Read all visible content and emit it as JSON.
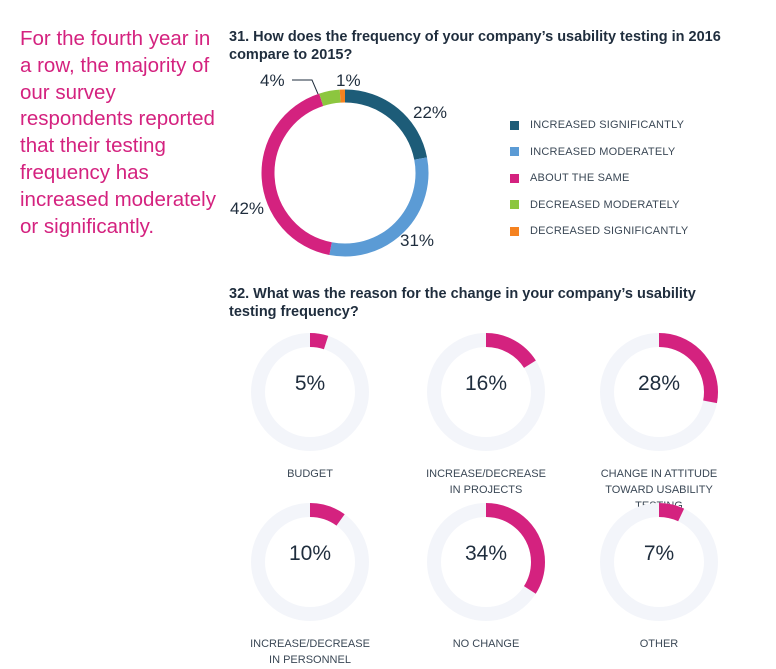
{
  "intro_text": "For the fourth year in a row, the majority of our survey respondents reported that their testing frequency has increased moderately or significantly.",
  "q31": {
    "title": "31. How does the frequency of your company’s usability testing in 2016 compare to 2015?"
  },
  "q32": {
    "title": "32. What was the reason for the change in your company’s usability testing frequency?"
  },
  "colors": {
    "increased_significantly": "#1d5c78",
    "increased_moderately": "#5b9bd5",
    "about_the_same": "#d4227f",
    "decreased_moderately": "#8cc63f",
    "decreased_significantly": "#f58220",
    "donut_track": "#f3f5fa",
    "donut_fill": "#d4227f"
  },
  "chart_data": [
    {
      "type": "pie",
      "style": "donut",
      "categories": [
        "INCREASED SIGNIFICANTLY",
        "INCREASED MODERATELY",
        "ABOUT THE SAME",
        "DECREASED MODERATELY",
        "DECREASED SIGNIFICANTLY"
      ],
      "values": [
        22,
        31,
        42,
        4,
        1
      ],
      "value_labels": [
        "22%",
        "31%",
        "42%",
        "4%",
        "1%"
      ],
      "legend_position": "right"
    },
    {
      "type": "pie",
      "style": "progress-donuts",
      "categories": [
        "BUDGET",
        "INCREASE/DECREASE IN PROJECTS",
        "CHANGE IN ATTITUDE TOWARD USABILITY TESTING",
        "INCREASE/DECREASE IN PERSONNEL",
        "NO CHANGE",
        "OTHER"
      ],
      "label_lines": [
        [
          "BUDGET"
        ],
        [
          "INCREASE/DECREASE",
          "IN PROJECTS"
        ],
        [
          "CHANGE IN ATTITUDE",
          "TOWARD USABILITY TESTING"
        ],
        [
          "INCREASE/DECREASE",
          "IN PERSONNEL"
        ],
        [
          "NO CHANGE"
        ],
        [
          "OTHER"
        ]
      ],
      "values": [
        5,
        16,
        28,
        10,
        34,
        7
      ],
      "value_labels": [
        "5%",
        "16%",
        "28%",
        "10%",
        "34%",
        "7%"
      ]
    }
  ]
}
